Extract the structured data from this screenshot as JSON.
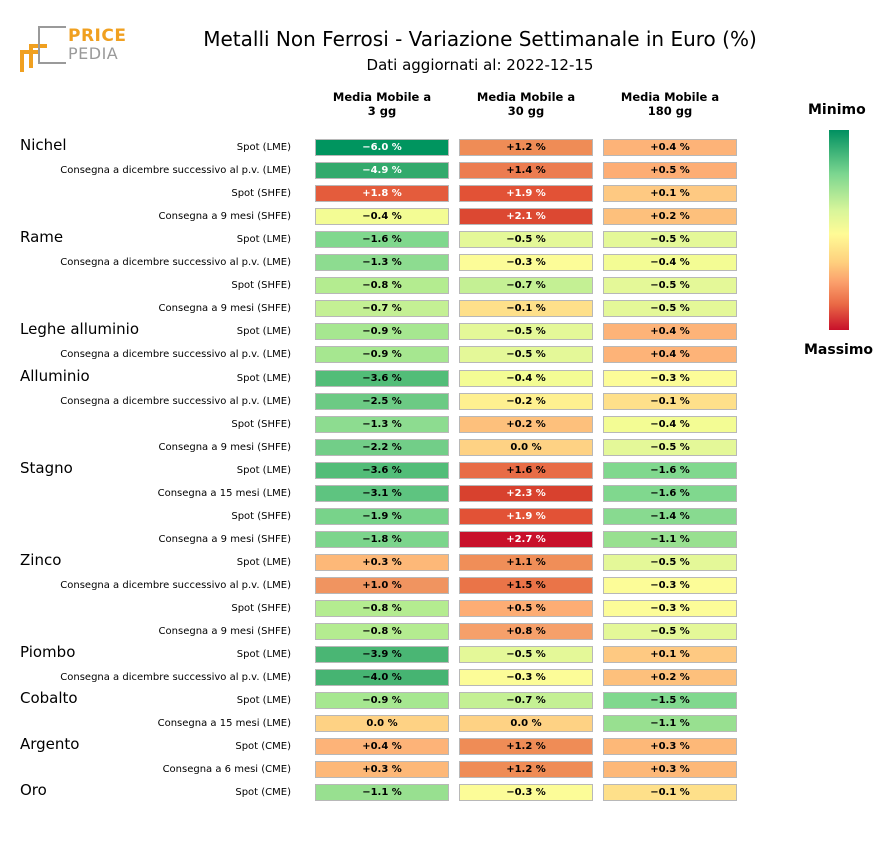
{
  "logo": {
    "text_price": "PRICE",
    "text_pedia": "PEDIA",
    "accent": "#f0a020",
    "gray": "#9a9a9a"
  },
  "title": "Metalli Non Ferrosi - Variazione Settimanale in Euro (%)",
  "subtitle": "Dati aggiornati al: 2022-12-15",
  "legend": {
    "min_label": "Minimo",
    "max_label": "Massimo"
  },
  "chart_data": {
    "type": "heatmap",
    "columns": [
      "Media Mobile a\n3 gg",
      "Media Mobile a\n30 gg",
      "Media Mobile a\n180 gg"
    ],
    "groups": [
      {
        "name": "Nichel",
        "rows": [
          {
            "label": "Spot (LME)",
            "values": [
              "−6.0 %",
              "+1.2 %",
              "+0.4 %"
            ],
            "colors": [
              "#00955f",
              "#ef8c56",
              "#fdb378"
            ]
          },
          {
            "label": "Consegna a dicembre successivo al p.v. (LME)",
            "values": [
              "−4.9 %",
              "+1.4 %",
              "+0.5 %"
            ],
            "colors": [
              "#32aa6c",
              "#ec7c50",
              "#fdad74"
            ]
          },
          {
            "label": "Spot (SHFE)",
            "values": [
              "+1.8 %",
              "+1.9 %",
              "+0.1 %"
            ],
            "colors": [
              "#e45c3c",
              "#e25236",
              "#fec982"
            ]
          },
          {
            "label": "Consegna a 9 mesi (SHFE)",
            "values": [
              "−0.4 %",
              "+2.1 %",
              "+0.2 %"
            ],
            "colors": [
              "#f3fc94",
              "#dc4832",
              "#fdc07c"
            ]
          }
        ]
      },
      {
        "name": "Rame",
        "rows": [
          {
            "label": "Spot (LME)",
            "values": [
              "−1.6 %",
              "−0.5 %",
              "−0.5 %"
            ],
            "colors": [
              "#80d88e",
              "#e4f898",
              "#e4f898"
            ]
          },
          {
            "label": "Consegna a dicembre successivo al p.v. (LME)",
            "values": [
              "−1.3 %",
              "−0.3 %",
              "−0.4 %"
            ],
            "colors": [
              "#8ddc90",
              "#fcfc98",
              "#f3fc94"
            ]
          },
          {
            "label": "Spot (SHFE)",
            "values": [
              "−0.8 %",
              "−0.7 %",
              "−0.5 %"
            ],
            "colors": [
              "#b4ec90",
              "#c4f094",
              "#e4f898"
            ]
          },
          {
            "label": "Consegna a 9 mesi (SHFE)",
            "values": [
              "−0.7 %",
              "−0.1 %",
              "−0.5 %"
            ],
            "colors": [
              "#c4f094",
              "#fee08a",
              "#e4f898"
            ]
          }
        ]
      },
      {
        "name": "Leghe alluminio",
        "rows": [
          {
            "label": "Spot (LME)",
            "values": [
              "−0.9 %",
              "−0.5 %",
              "+0.4 %"
            ],
            "colors": [
              "#a6e790",
              "#e4f898",
              "#fdb378"
            ]
          },
          {
            "label": "Consegna a dicembre successivo al p.v. (LME)",
            "values": [
              "−0.9 %",
              "−0.5 %",
              "+0.4 %"
            ],
            "colors": [
              "#a6e790",
              "#e4f898",
              "#fdb378"
            ]
          }
        ]
      },
      {
        "name": "Alluminio",
        "rows": [
          {
            "label": "Spot (LME)",
            "values": [
              "−3.6 %",
              "−0.4 %",
              "−0.3 %"
            ],
            "colors": [
              "#52bd78",
              "#f3fc94",
              "#fcfc98"
            ]
          },
          {
            "label": "Consegna a dicembre successivo al p.v. (LME)",
            "values": [
              "−2.5 %",
              "−0.2 %",
              "−0.1 %"
            ],
            "colors": [
              "#6cca84",
              "#fef090",
              "#fee08a"
            ]
          },
          {
            "label": "Spot (SHFE)",
            "values": [
              "−1.3 %",
              "+0.2 %",
              "−0.4 %"
            ],
            "colors": [
              "#8ddc90",
              "#fdc07c",
              "#f3fc94"
            ]
          },
          {
            "label": "Consegna a 9 mesi (SHFE)",
            "values": [
              "−2.2 %",
              "0.0 %",
              "−0.5 %"
            ],
            "colors": [
              "#72ce88",
              "#fed284",
              "#e4f898"
            ]
          }
        ]
      },
      {
        "name": "Stagno",
        "rows": [
          {
            "label": "Spot (LME)",
            "values": [
              "−3.6 %",
              "+1.6 %",
              "−1.6 %"
            ],
            "colors": [
              "#52bd78",
              "#e86c46",
              "#80d88e"
            ]
          },
          {
            "label": "Consegna a 15 mesi (LME)",
            "values": [
              "−3.1 %",
              "+2.3 %",
              "−1.6 %"
            ],
            "colors": [
              "#5ec480",
              "#d8412e",
              "#80d88e"
            ]
          },
          {
            "label": "Spot (SHFE)",
            "values": [
              "−1.9 %",
              "+1.9 %",
              "−1.4 %"
            ],
            "colors": [
              "#78d38a",
              "#e25236",
              "#88da90"
            ]
          },
          {
            "label": "Consegna a 9 mesi (SHFE)",
            "values": [
              "−1.8 %",
              "+2.7 %",
              "−1.1 %"
            ],
            "colors": [
              "#7cd58c",
              "#c8102a",
              "#98e090"
            ]
          }
        ]
      },
      {
        "name": "Zinco",
        "rows": [
          {
            "label": "Spot (LME)",
            "values": [
              "+0.3 %",
              "+1.1 %",
              "−0.5 %"
            ],
            "colors": [
              "#fdb878",
              "#f08e58",
              "#e4f898"
            ]
          },
          {
            "label": "Consegna a dicembre successivo al p.v. (LME)",
            "values": [
              "+1.0 %",
              "+1.5 %",
              "−0.3 %"
            ],
            "colors": [
              "#f09460",
              "#ea7448",
              "#fcfc98"
            ]
          },
          {
            "label": "Spot (SHFE)",
            "values": [
              "−0.8 %",
              "+0.5 %",
              "−0.3 %"
            ],
            "colors": [
              "#b4ec90",
              "#fdad74",
              "#fcfc98"
            ]
          },
          {
            "label": "Consegna a 9 mesi (SHFE)",
            "values": [
              "−0.8 %",
              "+0.8 %",
              "−0.5 %"
            ],
            "colors": [
              "#b4ec90",
              "#f6a06a",
              "#e4f898"
            ]
          }
        ]
      },
      {
        "name": "Piombo",
        "rows": [
          {
            "label": "Spot (LME)",
            "values": [
              "−3.9 %",
              "−0.5 %",
              "+0.1 %"
            ],
            "colors": [
              "#4ab674",
              "#e4f898",
              "#fec982"
            ]
          },
          {
            "label": "Consegna a dicembre successivo al p.v. (LME)",
            "values": [
              "−4.0 %",
              "−0.3 %",
              "+0.2 %"
            ],
            "colors": [
              "#46b472",
              "#fcfc98",
              "#fdc07c"
            ]
          }
        ]
      },
      {
        "name": "Cobalto",
        "rows": [
          {
            "label": "Spot (LME)",
            "values": [
              "−0.9 %",
              "−0.7 %",
              "−1.5 %"
            ],
            "colors": [
              "#a6e790",
              "#c4f094",
              "#80d88e"
            ]
          },
          {
            "label": "Consegna a 15 mesi (LME)",
            "values": [
              "0.0 %",
              "0.0 %",
              "−1.1 %"
            ],
            "colors": [
              "#fed284",
              "#fed284",
              "#98e090"
            ]
          }
        ]
      },
      {
        "name": "Argento",
        "rows": [
          {
            "label": "Spot (CME)",
            "values": [
              "+0.4 %",
              "+1.2 %",
              "+0.3 %"
            ],
            "colors": [
              "#fdb378",
              "#ef8c56",
              "#fdb878"
            ]
          },
          {
            "label": "Consegna a 6 mesi (CME)",
            "values": [
              "+0.3 %",
              "+1.2 %",
              "+0.3 %"
            ],
            "colors": [
              "#fdb878",
              "#ef8c56",
              "#fdb878"
            ]
          }
        ]
      },
      {
        "name": "Oro",
        "rows": [
          {
            "label": "Spot (CME)",
            "values": [
              "−1.1 %",
              "−0.3 %",
              "−0.1 %"
            ],
            "colors": [
              "#98e090",
              "#fcfc98",
              "#fee08a"
            ]
          }
        ]
      }
    ]
  }
}
